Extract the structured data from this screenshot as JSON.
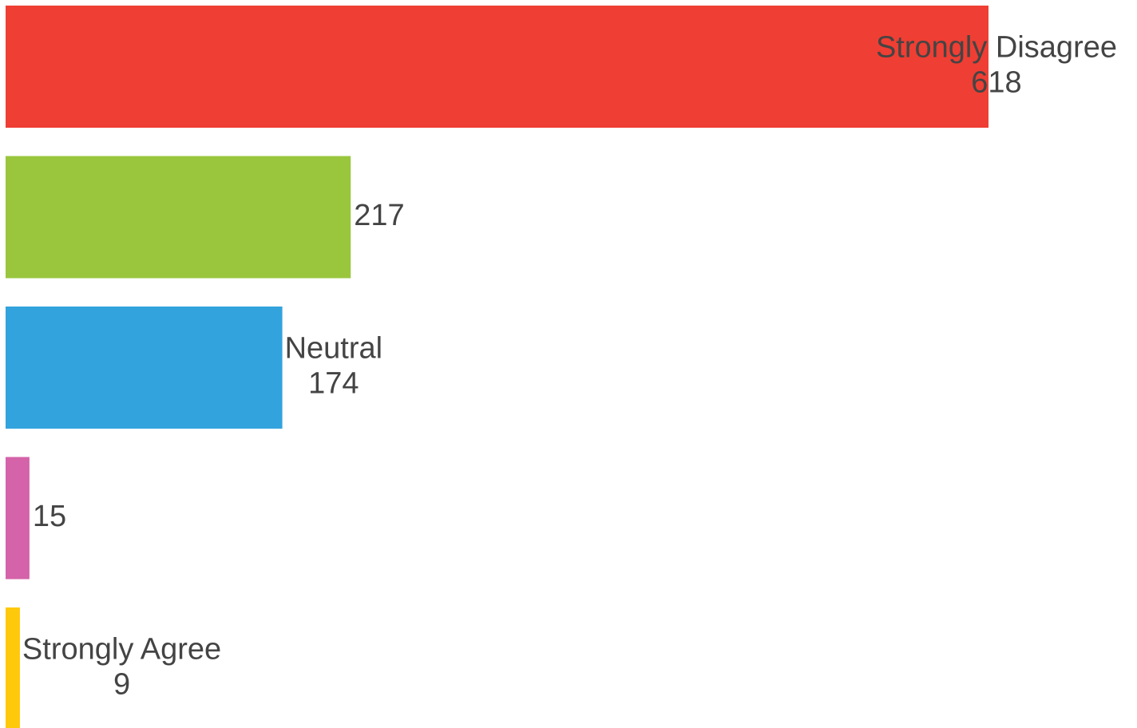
{
  "chart_data": {
    "type": "hbar",
    "categories": [
      "Strongly Disagree",
      null,
      "Neutral",
      null,
      "Strongly Agree"
    ],
    "values": [
      618,
      217,
      174,
      15,
      9
    ],
    "colors": [
      "#ef3e33",
      "#99c63d",
      "#32a3dd",
      "#d463a9",
      "#ffc90b"
    ]
  }
}
